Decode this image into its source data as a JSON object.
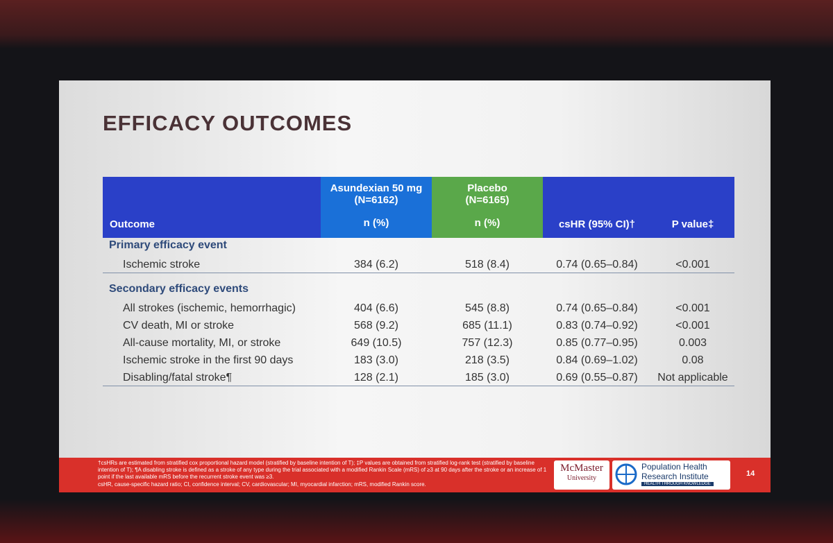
{
  "slide": {
    "title": "EFFICACY OUTCOMES",
    "page_number": "14"
  },
  "table": {
    "header": {
      "outcome": "Outcome",
      "asundexian": [
        "Asundexian 50 mg",
        "(N=6162)",
        "n (%)"
      ],
      "placebo": [
        "Placebo",
        "(N=6165)",
        "n (%)"
      ],
      "cshr": "csHR (95% CI)†",
      "p_value": "P value‡"
    },
    "sections": [
      {
        "label": "Primary efficacy event",
        "rows": [
          [
            "Ischemic stroke",
            "384 (6.2)",
            "518 (8.4)",
            "0.74 (0.65–0.84)",
            "<0.001"
          ]
        ]
      },
      {
        "label": "Secondary efficacy events",
        "rows": [
          [
            "All strokes (ischemic, hemorrhagic)",
            "404 (6.6)",
            "545 (8.8)",
            "0.74 (0.65–0.84)",
            "<0.001"
          ],
          [
            "CV death, MI or stroke",
            "568 (9.2)",
            "685 (11.1)",
            "0.83 (0.74–0.92)",
            "<0.001"
          ],
          [
            "All-cause mortality, MI, or stroke",
            "649 (10.5)",
            "757 (12.3)",
            "0.85 (0.77–0.95)",
            "0.003"
          ],
          [
            "Ischemic stroke in the first 90 days",
            "183 (3.0)",
            "218 (3.5)",
            "0.84 (0.69–1.02)",
            "0.08"
          ],
          [
            "Disabling/fatal stroke¶",
            "128 (2.1)",
            "185 (3.0)",
            "0.69 (0.55–0.87)",
            "Not applicable"
          ]
        ]
      }
    ]
  },
  "footnotes": [
    "†csHRs are estimated from stratified cox proportional hazard model (stratified by baseline intention of T); ‡P values are obtained from stratified log-rank test (stratified by baseline intention of T); ¶A disabling stroke is defined as a stroke of any type during the trial associated with a modified Rankin Scale (mRS) of ≥3 at 90 days after the stroke or an increase of 1 point if the last available mRS before the recurrent stroke event was ≥3.",
    "csHR, cause-specific hazard ratio; CI, confidence interval; CV, cardiovascular; MI, myocardial infarction; mRS, modified Rankin score."
  ],
  "logos": {
    "mcmaster": [
      "McMaster",
      "University"
    ],
    "phri": [
      "Population Health",
      "Research Institute",
      "HEALTH THROUGH KNOWLEDGE"
    ]
  }
}
